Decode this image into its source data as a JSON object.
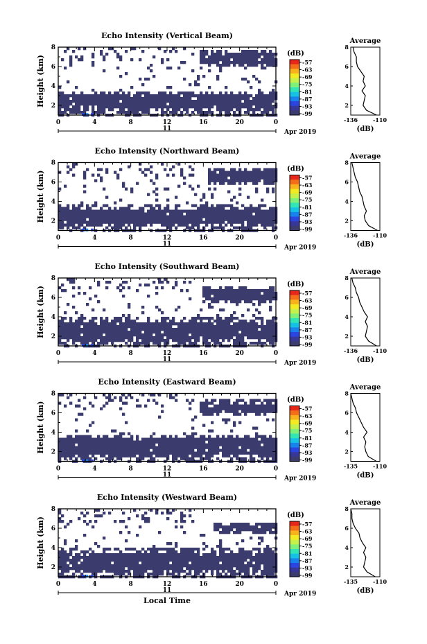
{
  "figure": {
    "xlabel": "Local Time",
    "date_label": "Apr 2019",
    "day_label": "11",
    "height_label": "Height (km)",
    "unit_label": "(dB)",
    "profile_title": "Average",
    "profile_xlabel": "(dB)"
  },
  "colorbar": {
    "ticks": [
      "-57",
      "-63",
      "-69",
      "-75",
      "-81",
      "-87",
      "-93",
      "-99"
    ],
    "colors": [
      "#e8271b",
      "#f46d19",
      "#f7b21c",
      "#f4ea22",
      "#c6f14a",
      "#7ff07a",
      "#32e5b5",
      "#16c2e4",
      "#1883ec",
      "#2a45e0",
      "#37379a",
      "#3b3b6e"
    ],
    "plot_color": "#3b3b6e"
  },
  "chart_data": [
    {
      "type": "heatmap",
      "title": "Echo Intensity (Vertical Beam)",
      "x_ticks": [
        "0",
        "4",
        "8",
        "12",
        "16",
        "20",
        "0"
      ],
      "y_ticks": [
        "2",
        "4",
        "6",
        "8"
      ],
      "xlim": [
        0,
        24
      ],
      "ylim": [
        1,
        8
      ],
      "echo_layers_km": [
        [
          1.0,
          3.5
        ],
        [
          5.9,
          7.8
        ]
      ],
      "upper_layer_start_hour": 15.5,
      "profile": {
        "x_ticks": [
          "-136",
          "-110"
        ],
        "y_ticks": [
          "2",
          "4",
          "6",
          "8"
        ],
        "xlim": [
          -136,
          -110
        ],
        "ylim": [
          1,
          8
        ],
        "height_km": [
          1.0,
          1.5,
          2.0,
          2.5,
          3.0,
          3.5,
          4.0,
          4.5,
          5.0,
          5.5,
          6.0,
          6.5,
          7.0,
          7.5,
          8.0
        ],
        "value_db": [
          -113,
          -122,
          -125,
          -124,
          -123,
          -126,
          -123,
          -125,
          -124,
          -127,
          -130,
          -131,
          -131,
          -133,
          -134
        ]
      }
    },
    {
      "type": "heatmap",
      "title": "Echo Intensity (Northward Beam)",
      "x_ticks": [
        "0",
        "4",
        "8",
        "12",
        "16",
        "20",
        "0"
      ],
      "y_ticks": [
        "2",
        "4",
        "6",
        "8"
      ],
      "xlim": [
        0,
        24
      ],
      "ylim": [
        1,
        8
      ],
      "echo_layers_km": [
        [
          1.0,
          3.6
        ],
        [
          5.6,
          7.4
        ]
      ],
      "upper_layer_start_hour": 16.5,
      "profile": {
        "x_ticks": [
          "-136",
          "-110"
        ],
        "y_ticks": [
          "2",
          "4",
          "6",
          "8"
        ],
        "xlim": [
          -136,
          -110
        ],
        "ylim": [
          1,
          8
        ],
        "height_km": [
          1.0,
          1.5,
          2.0,
          2.5,
          3.0,
          3.5,
          4.0,
          4.5,
          5.0,
          5.5,
          6.0,
          6.5,
          7.0,
          7.5,
          8.0
        ],
        "value_db": [
          -112,
          -120,
          -123,
          -124,
          -122,
          -124,
          -125,
          -126,
          -128,
          -129,
          -130,
          -132,
          -133,
          -134,
          -135
        ]
      }
    },
    {
      "type": "heatmap",
      "title": "Echo Intensity (Southward Beam)",
      "x_ticks": [
        "0",
        "4",
        "8",
        "12",
        "16",
        "20",
        "0"
      ],
      "y_ticks": [
        "2",
        "4",
        "6",
        "8"
      ],
      "xlim": [
        0,
        24
      ],
      "ylim": [
        1,
        8
      ],
      "echo_layers_km": [
        [
          1.0,
          3.9
        ],
        [
          5.3,
          7.2
        ]
      ],
      "upper_layer_start_hour": 16.0,
      "profile": {
        "x_ticks": [
          "-136",
          "-110"
        ],
        "y_ticks": [
          "2",
          "4",
          "6",
          "8"
        ],
        "xlim": [
          -136,
          -110
        ],
        "ylim": [
          1,
          8
        ],
        "height_km": [
          1.0,
          1.5,
          2.0,
          2.5,
          3.0,
          3.5,
          4.0,
          4.5,
          5.0,
          5.5,
          6.0,
          6.5,
          7.0,
          7.5,
          8.0
        ],
        "value_db": [
          -113,
          -120,
          -123,
          -122,
          -121,
          -123,
          -121,
          -124,
          -126,
          -128,
          -129,
          -131,
          -132,
          -134,
          -135
        ]
      }
    },
    {
      "type": "heatmap",
      "title": "Echo Intensity (Eastward Beam)",
      "x_ticks": [
        "0",
        "4",
        "8",
        "12",
        "16",
        "20",
        "0"
      ],
      "y_ticks": [
        "2",
        "4",
        "6",
        "8"
      ],
      "xlim": [
        0,
        24
      ],
      "ylim": [
        1,
        8
      ],
      "echo_layers_km": [
        [
          1.0,
          3.8
        ],
        [
          5.6,
          7.3
        ]
      ],
      "upper_layer_start_hour": 15.5,
      "profile": {
        "x_ticks": [
          "-135",
          "-110"
        ],
        "y_ticks": [
          "2",
          "4",
          "6",
          "8"
        ],
        "xlim": [
          -135,
          -110
        ],
        "ylim": [
          1,
          8
        ],
        "height_km": [
          1.0,
          1.5,
          2.0,
          2.5,
          3.0,
          3.5,
          4.0,
          4.5,
          5.0,
          5.5,
          6.0,
          6.5,
          7.0,
          7.5,
          8.0
        ],
        "value_db": [
          -113,
          -120,
          -122,
          -123,
          -122,
          -124,
          -121,
          -124,
          -126,
          -128,
          -130,
          -131,
          -133,
          -134,
          -135
        ]
      }
    },
    {
      "type": "heatmap",
      "title": "Echo Intensity (Westward Beam)",
      "x_ticks": [
        "0",
        "4",
        "8",
        "12",
        "16",
        "20",
        "0"
      ],
      "y_ticks": [
        "2",
        "4",
        "6",
        "8"
      ],
      "xlim": [
        0,
        24
      ],
      "ylim": [
        1,
        8
      ],
      "echo_layers_km": [
        [
          1.0,
          3.9
        ],
        [
          5.3,
          6.6
        ]
      ],
      "upper_layer_start_hour": 17.0,
      "profile": {
        "x_ticks": [
          "-135",
          "-110"
        ],
        "y_ticks": [
          "2",
          "4",
          "6",
          "8"
        ],
        "xlim": [
          -135,
          -110
        ],
        "ylim": [
          1,
          8
        ],
        "height_km": [
          1.0,
          1.5,
          2.0,
          2.5,
          3.0,
          3.5,
          4.0,
          4.5,
          5.0,
          5.5,
          6.0,
          6.5,
          7.0,
          7.5,
          8.0
        ],
        "value_db": [
          -114,
          -121,
          -124,
          -123,
          -122,
          -124,
          -122,
          -125,
          -127,
          -128,
          -131,
          -133,
          -134,
          -134,
          -135
        ]
      }
    }
  ]
}
